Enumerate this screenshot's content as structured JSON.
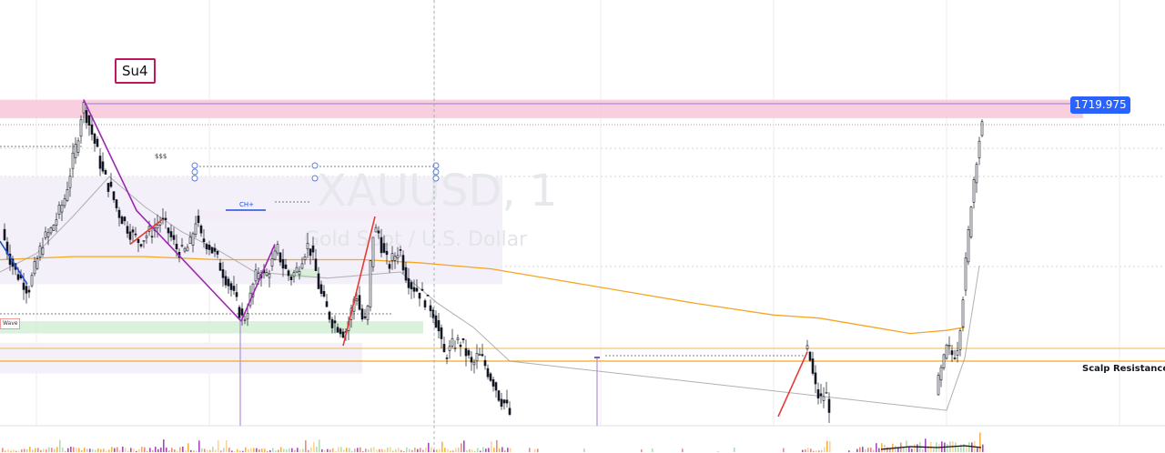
{
  "watermark": {
    "symbol": "XAUUSD, 1",
    "description": "Gold Spot / U.S. Dollar"
  },
  "annotations": {
    "su4": "Su4",
    "price_tag": "1719.975",
    "scalp_resistance": "Scalp Resistance:",
    "wave": "Wave",
    "sss": "$$$",
    "ch_plus": "CH+"
  },
  "colors": {
    "candle_up": "#131722",
    "candle_down": "#131722",
    "ma_long": "#f5a623",
    "ma_short": "#9e9e9e",
    "supply_zone": "#f8c7da",
    "demand_zone": "#d4efd6",
    "range_box": "#f3eefa",
    "swing_purple": "#9c27b0",
    "swing_red": "#e53935",
    "swing_blue": "#1e4fd8",
    "resistance_line": "#f5a623",
    "price_tag_bg": "#2962ff"
  },
  "chart_data": {
    "type": "candlestick",
    "symbol": "XAUUSD",
    "timeframe": "1",
    "last_price": 1719.975,
    "close_path": [
      [
        0,
        1716.7
      ],
      [
        8,
        1715.8
      ],
      [
        16,
        1715.2
      ],
      [
        24,
        1714.9
      ],
      [
        30,
        1714.6
      ],
      [
        38,
        1715.4
      ],
      [
        46,
        1716.2
      ],
      [
        54,
        1716.5
      ],
      [
        62,
        1717.0
      ],
      [
        70,
        1717.6
      ],
      [
        78,
        1718.7
      ],
      [
        84,
        1719.5
      ],
      [
        90,
        1720.7
      ],
      [
        96,
        1720.1
      ],
      [
        104,
        1719.3
      ],
      [
        112,
        1718.4
      ],
      [
        120,
        1717.9
      ],
      [
        128,
        1717.2
      ],
      [
        136,
        1716.8
      ],
      [
        144,
        1716.4
      ],
      [
        152,
        1716.2
      ],
      [
        160,
        1716.4
      ],
      [
        168,
        1716.6
      ],
      [
        176,
        1716.9
      ],
      [
        184,
        1716.5
      ],
      [
        192,
        1716.0
      ],
      [
        200,
        1715.8
      ],
      [
        208,
        1716.1
      ],
      [
        214,
        1716.9
      ],
      [
        220,
        1716.3
      ],
      [
        228,
        1716.1
      ],
      [
        236,
        1715.7
      ],
      [
        244,
        1715.2
      ],
      [
        252,
        1714.7
      ],
      [
        260,
        1714.1
      ],
      [
        266,
        1713.6
      ],
      [
        272,
        1714.1
      ],
      [
        278,
        1714.9
      ],
      [
        284,
        1715.3
      ],
      [
        290,
        1715.0
      ],
      [
        298,
        1715.5
      ],
      [
        304,
        1715.9
      ],
      [
        310,
        1715.4
      ],
      [
        318,
        1715.0
      ],
      [
        326,
        1715.3
      ],
      [
        332,
        1715.8
      ],
      [
        338,
        1716.1
      ],
      [
        344,
        1715.5
      ],
      [
        350,
        1714.6
      ],
      [
        356,
        1714.1
      ],
      [
        364,
        1713.6
      ],
      [
        372,
        1713.4
      ],
      [
        378,
        1713.2
      ],
      [
        384,
        1713.8
      ],
      [
        390,
        1714.6
      ],
      [
        396,
        1713.7
      ],
      [
        402,
        1713.5
      ],
      [
        408,
        1716.4
      ],
      [
        414,
        1716.6
      ],
      [
        420,
        1715.8
      ],
      [
        426,
        1715.4
      ],
      [
        432,
        1715.7
      ],
      [
        438,
        1716.0
      ],
      [
        444,
        1715.2
      ],
      [
        450,
        1714.8
      ],
      [
        458,
        1714.6
      ],
      [
        466,
        1714.3
      ],
      [
        474,
        1714.0
      ],
      [
        480,
        1713.4
      ],
      [
        486,
        1712.5
      ],
      [
        492,
        1712.6
      ],
      [
        498,
        1712.9
      ],
      [
        506,
        1712.9
      ],
      [
        512,
        1712.5
      ],
      [
        518,
        1712.1
      ],
      [
        524,
        1712.5
      ],
      [
        530,
        1712.3
      ],
      [
        536,
        1711.9
      ],
      [
        542,
        1711.6
      ],
      [
        548,
        1711.1
      ],
      [
        554,
        1710.9
      ],
      [
        560,
        1710.5
      ],
      [
        880,
        1712.2
      ],
      [
        884,
        1712.7
      ],
      [
        888,
        1712.5
      ],
      [
        894,
        1711.5
      ],
      [
        900,
        1711.0
      ],
      [
        906,
        1711.3
      ],
      [
        912,
        1710.6
      ],
      [
        1025,
        1710.7
      ],
      [
        1030,
        1711.6
      ],
      [
        1036,
        1712.3
      ],
      [
        1040,
        1712.8
      ],
      [
        1044,
        1712.5
      ],
      [
        1048,
        1712.6
      ],
      [
        1052,
        1712.9
      ],
      [
        1058,
        1714.8
      ],
      [
        1062,
        1716.1
      ],
      [
        1066,
        1717.5
      ],
      [
        1070,
        1718.5
      ],
      [
        1074,
        1719.4
      ],
      [
        1078,
        1719.9
      ]
    ],
    "moving_averages": [
      {
        "name": "",
        "color": "#f5a623",
        "points": [
          [
            0,
            1715.6
          ],
          [
            80,
            1715.7
          ],
          [
            160,
            1715.7
          ],
          [
            240,
            1715.6
          ],
          [
            320,
            1715.6
          ],
          [
            400,
            1715.6
          ],
          [
            460,
            1715.5
          ],
          [
            540,
            1715.3
          ],
          [
            620,
            1714.9
          ],
          [
            700,
            1714.5
          ],
          [
            760,
            1714.2
          ],
          [
            850,
            1713.8
          ],
          [
            900,
            1713.7
          ],
          [
            960,
            1713.4
          ],
          [
            1000,
            1713.2
          ],
          [
            1040,
            1713.3
          ],
          [
            1060,
            1713.4
          ]
        ]
      },
      {
        "name": "",
        "color": "#9e9e9e",
        "points": [
          [
            0,
            1715.2
          ],
          [
            40,
            1715.8
          ],
          [
            80,
            1717.0
          ],
          [
            120,
            1718.3
          ],
          [
            160,
            1717.3
          ],
          [
            200,
            1716.5
          ],
          [
            240,
            1715.9
          ],
          [
            280,
            1715.2
          ],
          [
            320,
            1715.1
          ],
          [
            360,
            1715.0
          ],
          [
            400,
            1715.1
          ],
          [
            440,
            1715.2
          ],
          [
            480,
            1714.2
          ],
          [
            520,
            1713.4
          ],
          [
            560,
            1712.3
          ],
          [
            1040,
            1710.7
          ],
          [
            1060,
            1712.4
          ],
          [
            1076,
            1715.4
          ]
        ]
      }
    ],
    "zones": [
      {
        "kind": "supply",
        "x_start": 0,
        "x_end": 1190,
        "price_top": 1720.8,
        "price_bottom": 1720.2,
        "label": ""
      },
      {
        "kind": "supply",
        "x_start": 215,
        "x_end": 480,
        "price_top": 1717.2,
        "price_bottom": 1716.9,
        "label": ""
      },
      {
        "kind": "range",
        "x_start": 0,
        "x_end": 552,
        "price_top": 1718.3,
        "price_bottom": 1714.8,
        "label": ""
      },
      {
        "kind": "demand",
        "x_start": 0,
        "x_end": 465,
        "price_top": 1713.6,
        "price_bottom": 1713.2,
        "label": "Wave"
      },
      {
        "kind": "demand",
        "x_start": 318,
        "x_end": 350,
        "price_top": 1715.3,
        "price_bottom": 1715.0,
        "label": ""
      },
      {
        "kind": "range",
        "x_start": 0,
        "x_end": 398,
        "price_top": 1712.9,
        "price_bottom": 1711.9,
        "label": ""
      }
    ],
    "swing_lines": [
      {
        "color": "#9c27b0",
        "points": [
          [
            92,
            1720.8
          ],
          [
            150,
            1717.2
          ],
          [
            265,
            1713.6
          ]
        ]
      },
      {
        "color": "#1e4fd8",
        "points": [
          [
            0,
            1716.2
          ],
          [
            30,
            1714.8
          ]
        ]
      },
      {
        "color": "#e53935",
        "points": [
          [
            143,
            1716.1
          ],
          [
            178,
            1716.9
          ]
        ]
      },
      {
        "color": "#9c27b0",
        "points": [
          [
            265,
            1713.6
          ],
          [
            302,
            1716.1
          ]
        ]
      },
      {
        "color": "#e53935",
        "points": [
          [
            377,
            1712.8
          ],
          [
            412,
            1717.0
          ]
        ]
      },
      {
        "color": "#e53935",
        "points": [
          [
            855,
            1710.5
          ],
          [
            887,
            1712.6
          ]
        ]
      }
    ],
    "horizontal_levels": [
      {
        "name": "Scalp Resistance:",
        "price": 1712.9,
        "color": "#f5a623"
      },
      {
        "name": "",
        "price": 1713.0,
        "color": "#f5a623"
      }
    ],
    "volume_hint": "volume histogram along bottom edge"
  }
}
